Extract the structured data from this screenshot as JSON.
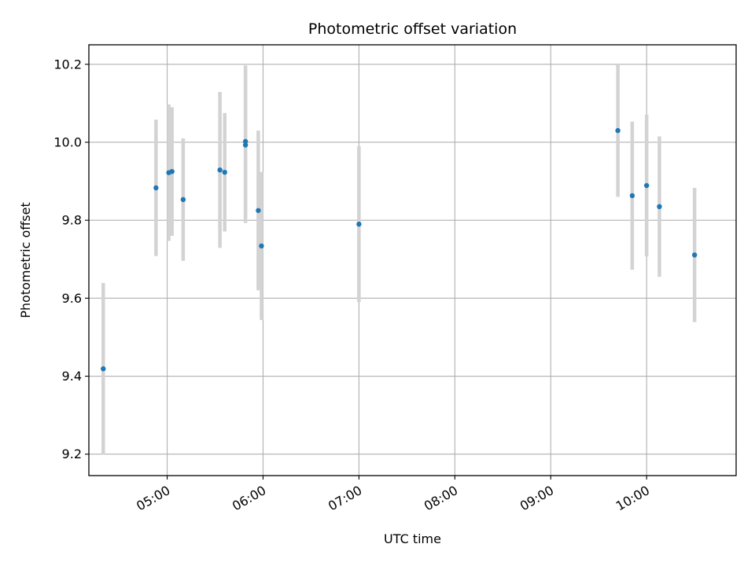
{
  "chart_data": {
    "type": "scatter",
    "title": "Photometric offset variation",
    "xlabel": "UTC time",
    "ylabel": "Photometric offset",
    "x_axis_kind": "time",
    "xlim": [
      "04:11",
      "10:56"
    ],
    "ylim": [
      9.145,
      10.25
    ],
    "grid": true,
    "x_ticks": [
      "05:00",
      "06:00",
      "07:00",
      "08:00",
      "09:00",
      "10:00"
    ],
    "y_ticks": [
      "9.2",
      "9.4",
      "9.6",
      "9.8",
      "10.0",
      "10.2"
    ],
    "y_tick_values": [
      9.2,
      9.4,
      9.6,
      9.8,
      10.0,
      10.2
    ],
    "point_color": "#1f77b4",
    "errorbar_color": "#d3d3d3",
    "points": [
      {
        "x": "04:20",
        "y": 9.419,
        "err": 0.22
      },
      {
        "x": "04:53",
        "y": 9.883,
        "err": 0.175
      },
      {
        "x": "05:01",
        "y": 9.922,
        "err": 0.175
      },
      {
        "x": "05:03",
        "y": 9.925,
        "err": 0.165
      },
      {
        "x": "05:10",
        "y": 9.853,
        "err": 0.157
      },
      {
        "x": "05:33",
        "y": 9.929,
        "err": 0.2
      },
      {
        "x": "05:36",
        "y": 9.923,
        "err": 0.152
      },
      {
        "x": "05:49",
        "y": 10.002,
        "err": 0.195
      },
      {
        "x": "05:49",
        "y": 9.993,
        "err": 0.2
      },
      {
        "x": "05:57",
        "y": 9.825,
        "err": 0.205
      },
      {
        "x": "05:59",
        "y": 9.734,
        "err": 0.19
      },
      {
        "x": "07:00",
        "y": 9.79,
        "err": 0.2
      },
      {
        "x": "09:42",
        "y": 10.03,
        "err": 0.17
      },
      {
        "x": "09:51",
        "y": 9.863,
        "err": 0.19
      },
      {
        "x": "10:00",
        "y": 9.889,
        "err": 0.182
      },
      {
        "x": "10:08",
        "y": 9.835,
        "err": 0.18
      },
      {
        "x": "10:30",
        "y": 9.711,
        "err": 0.172
      }
    ]
  }
}
